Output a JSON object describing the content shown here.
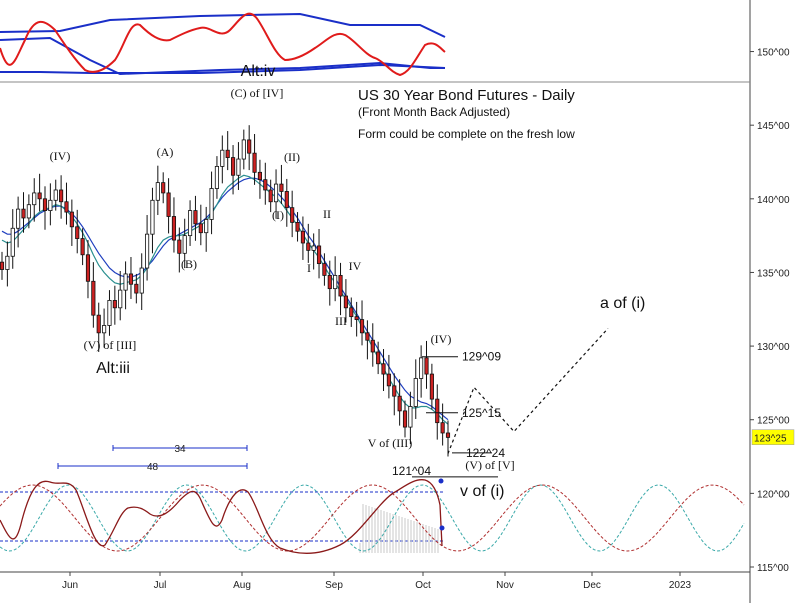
{
  "chart_data": {
    "type": "candlestick",
    "title": "US 30 Year Bond Futures - Daily",
    "subtitle": "(Front Month Back Adjusted)",
    "note": "Form could be complete on the fresh low",
    "y_ticks": [
      "150^00",
      "145^00",
      "140^00",
      "135^00",
      "130^00",
      "125^00",
      "120^00",
      "115^00"
    ],
    "y_tick_values": [
      150,
      145,
      140,
      135,
      130,
      125,
      120,
      115
    ],
    "ylim": [
      115,
      153.5
    ],
    "x_ticks": [
      "Jun",
      "Jul",
      "Aug",
      "Sep",
      "Oct",
      "Nov",
      "Dec",
      "2023"
    ],
    "current_price": "123^25",
    "current_price_value": 123.78,
    "colors": {
      "up": "#ffffff",
      "down": "#cc2222",
      "ma_blue": "#1f3fbf",
      "ma_teal": "#2a8f8f",
      "osc": "#8b1a1a",
      "osc_band": "#1f2fbf",
      "price_tag": "#ffff00"
    },
    "closes": [
      135.2,
      136.1,
      138.0,
      139.3,
      138.7,
      139.6,
      140.4,
      140.0,
      139.2,
      139.9,
      140.6,
      139.8,
      139.1,
      138.1,
      137.3,
      136.2,
      134.4,
      132.1,
      130.9,
      131.4,
      133.1,
      132.6,
      133.8,
      134.9,
      134.2,
      133.6,
      135.3,
      137.6,
      139.9,
      141.1,
      140.4,
      138.8,
      137.2,
      136.3,
      137.5,
      139.2,
      138.3,
      137.7,
      138.6,
      140.7,
      142.2,
      143.3,
      142.8,
      141.6,
      142.7,
      144.0,
      143.1,
      141.8,
      141.3,
      140.6,
      139.8,
      141.0,
      140.5,
      139.4,
      138.4,
      137.8,
      137.0,
      136.5,
      136.8,
      135.6,
      134.8,
      133.9,
      134.8,
      133.4,
      132.6,
      132.0,
      131.8,
      130.9,
      130.4,
      129.6,
      128.8,
      128.1,
      127.3,
      126.6,
      125.6,
      124.5,
      125.9,
      127.8,
      129.2,
      128.1,
      126.4,
      124.8,
      124.1,
      123.8
    ],
    "ma_fast": [
      137.2,
      137.0,
      137.1,
      137.5,
      137.9,
      138.3,
      138.8,
      139.1,
      139.3,
      139.4,
      139.6,
      139.5,
      139.2,
      138.8,
      138.3,
      137.7,
      137.0,
      136.2,
      135.5,
      135.0,
      134.6,
      134.3,
      134.2,
      134.3,
      134.4,
      134.5,
      134.8,
      135.3,
      136.0,
      136.7,
      137.2,
      137.4,
      137.5,
      137.5,
      137.6,
      137.8,
      138.0,
      138.2,
      138.5,
      139.0,
      139.6,
      140.3,
      140.8,
      141.1,
      141.4,
      141.6,
      141.5,
      141.3,
      141.0,
      140.7,
      140.4,
      140.1,
      139.7,
      139.2,
      138.7,
      138.2,
      137.6,
      137.0,
      136.5,
      136.0,
      135.4,
      134.8,
      134.3,
      133.7,
      133.2,
      132.6,
      132.0,
      131.3,
      130.6,
      129.9,
      129.2,
      128.5,
      127.8,
      127.2,
      126.6,
      126.1,
      125.8,
      125.8,
      125.9,
      125.9,
      125.7,
      125.4,
      125.0,
      124.7
    ],
    "ma_slow": [
      137.8,
      137.6,
      137.6,
      137.8,
      138.1,
      138.4,
      138.7,
      139.0,
      139.2,
      139.4,
      139.5,
      139.5,
      139.3,
      139.0,
      138.6,
      138.1,
      137.5,
      136.9,
      136.3,
      135.8,
      135.3,
      135.0,
      134.8,
      134.7,
      134.7,
      134.8,
      135.0,
      135.4,
      135.8,
      136.3,
      136.8,
      137.2,
      137.4,
      137.6,
      137.8,
      138.0,
      138.2,
      138.4,
      138.7,
      139.1,
      139.6,
      140.1,
      140.5,
      140.8,
      141.1,
      141.3,
      141.4,
      141.4,
      141.3,
      141.1,
      140.8,
      140.5,
      140.1,
      139.7,
      139.2,
      138.7,
      138.1,
      137.5,
      137.0,
      136.4,
      135.8,
      135.2,
      134.6,
      134.0,
      133.4,
      132.8,
      132.2,
      131.6,
      131.0,
      130.4,
      129.8,
      129.2,
      128.6,
      128.0,
      127.5,
      127.0,
      126.6,
      126.4,
      126.2,
      126.1,
      125.9,
      125.6,
      125.3,
      125.0
    ],
    "levels": [
      {
        "label": "129^09",
        "value": 129.28
      },
      {
        "label": "125^15",
        "value": 125.47
      },
      {
        "label": "122^24",
        "value": 122.75
      },
      {
        "label": "121^04",
        "value": 121.12
      }
    ],
    "projection": [
      [
        123.8,
        122.7
      ],
      [
        127.2,
        125.0
      ],
      [
        124.2,
        131.2
      ]
    ],
    "wave_labels": {
      "c_of_iv": "(C) of [IV]",
      "iv_paren": "(IV)",
      "a_paren": "(A)",
      "ii_paren": "(II)",
      "b_paren": "(B)",
      "i_paren": "(I)",
      "ii_roman": "II",
      "i_roman": "I",
      "iv_roman": "IV",
      "iii_roman": "III",
      "iv_paren2": "(IV)",
      "v_of_iii_bracket": "(V) of [III]",
      "alt_iii": "Alt:iii",
      "alt_iv": "Alt:iv",
      "v_of_iii": "V of (III)",
      "v_of_v": "(V) of [V]",
      "v_of_i": "v of (i)",
      "a_of_i": "a of (i)"
    },
    "cycle_labels": [
      "34",
      "48"
    ]
  }
}
